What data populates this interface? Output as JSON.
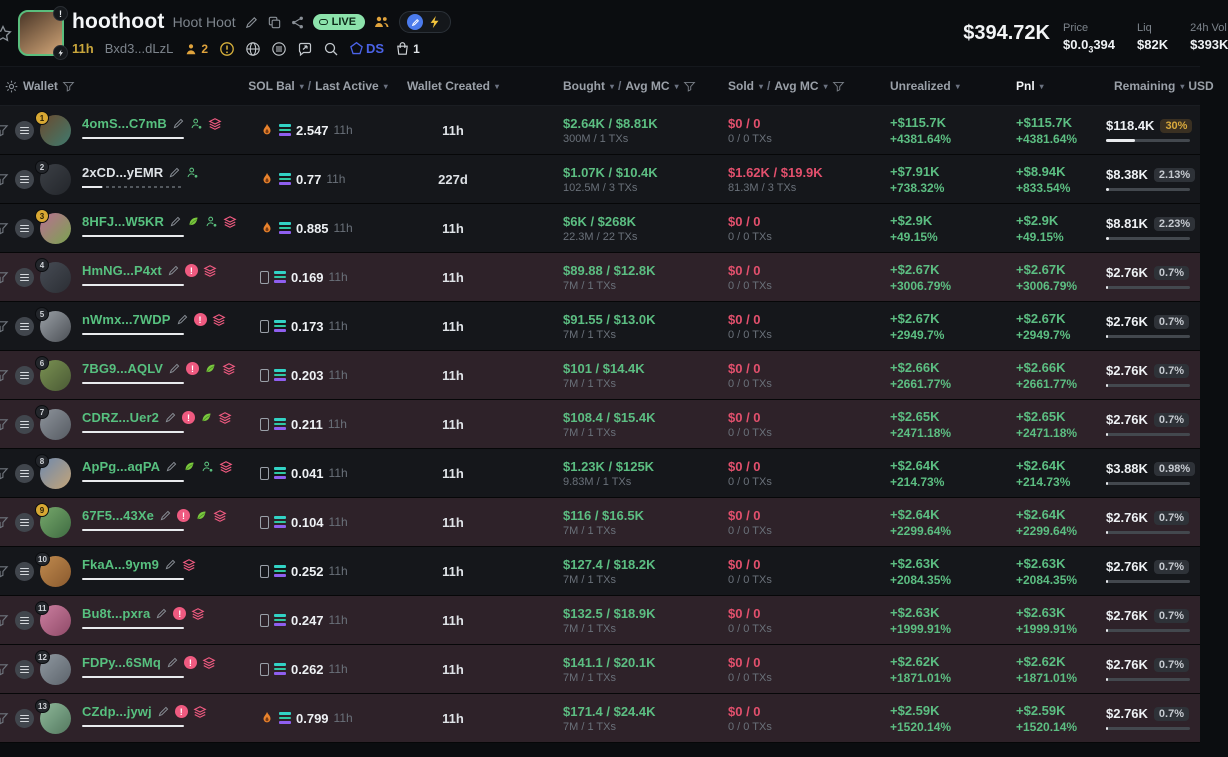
{
  "colors": {
    "green": "#5cbe82",
    "red": "#e3506d",
    "gold": "#d9a93c",
    "ds_blue": "#4b63e8",
    "live_green": "#8ce3ab"
  },
  "header": {
    "token_symbol": "hoothoot",
    "token_name": "Hoot Hoot",
    "live_label": "LIVE",
    "age": "11h",
    "contract": "Bxd3...dLzL",
    "watchers_count": "2",
    "ds_label": "DS",
    "gift_count": "1",
    "market_cap": "$394.72K",
    "price_label": "Price",
    "price_prefix": "$0.0",
    "price_sub": "3",
    "price_suffix": "394",
    "liq_label": "Liq",
    "liq_value": "$82K",
    "vol_label": "24h Vol",
    "vol_value": "$393K"
  },
  "table": {
    "header": {
      "wallet": "Wallet",
      "sol_bal": "SOL Bal",
      "last_active": "Last Active",
      "wallet_created": "Wallet Created",
      "bought": "Bought",
      "avg_mc": "Avg MC",
      "sold": "Sold",
      "avg_mc2": "Avg MC",
      "unrealized": "Unrealized",
      "pnl": "Pnl",
      "remaining": "Remaining",
      "usd": "USD"
    },
    "rows": [
      {
        "rank": "1",
        "rank_gold": true,
        "flagged": false,
        "address": "4omS...C7mB",
        "address_white": false,
        "bar_partial": false,
        "icons": [
          "edit",
          "user",
          "layers"
        ],
        "avatar": [
          "#6b4a2e",
          "#3f7a6e"
        ],
        "sol_icon": "flame",
        "sol_bal": "2.547",
        "last_active": "11h",
        "created": "11h",
        "bought": "$2.64K / $8.81K",
        "bought_sub": "300M / 1 TXs",
        "sold": "$0 / 0",
        "sold_sub": "0 / 0 TXs",
        "unrealized": "+$115.7K",
        "unrealized_pct": "+4381.64%",
        "pnl": "+$115.7K",
        "pnl_pct": "+4381.64%",
        "remaining": "$118.4K",
        "remaining_pct": "30%",
        "pct_yellow": true,
        "bar": 34
      },
      {
        "rank": "2",
        "rank_gold": false,
        "flagged": false,
        "address": "2xCD...yEMR",
        "address_white": true,
        "bar_partial": true,
        "icons": [
          "edit",
          "user"
        ],
        "avatar": [
          "#3c4046",
          "#23262b"
        ],
        "sol_icon": "flame",
        "sol_bal": "0.77",
        "last_active": "11h",
        "created": "227d",
        "bought": "$1.07K / $10.4K",
        "bought_sub": "102.5M / 3 TXs",
        "sold": "$1.62K / $19.9K",
        "sold_sub": "81.3M / 3 TXs",
        "unrealized": "+$7.91K",
        "unrealized_pct": "+738.32%",
        "pnl": "+$8.94K",
        "pnl_pct": "+833.54%",
        "remaining": "$8.38K",
        "remaining_pct": "2.13%",
        "pct_yellow": false,
        "bar": 4
      },
      {
        "rank": "3",
        "rank_gold": true,
        "flagged": false,
        "address": "8HFJ...W5KR",
        "address_white": false,
        "bar_partial": false,
        "icons": [
          "edit",
          "leaf",
          "user",
          "layers"
        ],
        "avatar": [
          "#b96f93",
          "#7aa34f"
        ],
        "sol_icon": "flame",
        "sol_bal": "0.885",
        "last_active": "11h",
        "created": "11h",
        "bought": "$6K / $268K",
        "bought_sub": "22.3M / 22 TXs",
        "sold": "$0 / 0",
        "sold_sub": "0 / 0 TXs",
        "unrealized": "+$2.9K",
        "unrealized_pct": "+49.15%",
        "pnl": "+$2.9K",
        "pnl_pct": "+49.15%",
        "remaining": "$8.81K",
        "remaining_pct": "2.23%",
        "pct_yellow": false,
        "bar": 4
      },
      {
        "rank": "4",
        "rank_gold": false,
        "flagged": true,
        "address": "HmNG...P4xt",
        "address_white": false,
        "bar_partial": false,
        "icons": [
          "edit",
          "alert",
          "layers"
        ],
        "avatar": [
          "#474c55",
          "#2b2e34"
        ],
        "sol_icon": "card",
        "sol_bal": "0.169",
        "last_active": "11h",
        "created": "11h",
        "bought": "$89.88 / $12.8K",
        "bought_sub": "7M / 1 TXs",
        "sold": "$0 / 0",
        "sold_sub": "0 / 0 TXs",
        "unrealized": "+$2.67K",
        "unrealized_pct": "+3006.79%",
        "pnl": "+$2.67K",
        "pnl_pct": "+3006.79%",
        "remaining": "$2.76K",
        "remaining_pct": "0.7%",
        "pct_yellow": false,
        "bar": 2
      },
      {
        "rank": "5",
        "rank_gold": false,
        "flagged": false,
        "address": "nWmx...7WDP",
        "address_white": false,
        "bar_partial": false,
        "icons": [
          "edit",
          "alert",
          "layers"
        ],
        "avatar": [
          "#9aa0a6",
          "#4b4f55"
        ],
        "sol_icon": "card",
        "sol_bal": "0.173",
        "last_active": "11h",
        "created": "11h",
        "bought": "$91.55 / $13.0K",
        "bought_sub": "7M / 1 TXs",
        "sold": "$0 / 0",
        "sold_sub": "0 / 0 TXs",
        "unrealized": "+$2.67K",
        "unrealized_pct": "+2949.7%",
        "pnl": "+$2.67K",
        "pnl_pct": "+2949.7%",
        "remaining": "$2.76K",
        "remaining_pct": "0.7%",
        "pct_yellow": false,
        "bar": 2
      },
      {
        "rank": "6",
        "rank_gold": false,
        "flagged": true,
        "address": "7BG9...AQLV",
        "address_white": false,
        "bar_partial": false,
        "icons": [
          "edit",
          "alert",
          "leaf",
          "layers"
        ],
        "avatar": [
          "#7a9152",
          "#4a5a35"
        ],
        "sol_icon": "card",
        "sol_bal": "0.203",
        "last_active": "11h",
        "created": "11h",
        "bought": "$101 / $14.4K",
        "bought_sub": "7M / 1 TXs",
        "sold": "$0 / 0",
        "sold_sub": "0 / 0 TXs",
        "unrealized": "+$2.66K",
        "unrealized_pct": "+2661.77%",
        "pnl": "+$2.66K",
        "pnl_pct": "+2661.77%",
        "remaining": "$2.76K",
        "remaining_pct": "0.7%",
        "pct_yellow": false,
        "bar": 2
      },
      {
        "rank": "7",
        "rank_gold": false,
        "flagged": true,
        "address": "CDRZ...Uer2",
        "address_white": false,
        "bar_partial": false,
        "icons": [
          "edit",
          "alert",
          "leaf",
          "layers"
        ],
        "avatar": [
          "#8d939b",
          "#565b62"
        ],
        "sol_icon": "card",
        "sol_bal": "0.211",
        "last_active": "11h",
        "created": "11h",
        "bought": "$108.4 / $15.4K",
        "bought_sub": "7M / 1 TXs",
        "sold": "$0 / 0",
        "sold_sub": "0 / 0 TXs",
        "unrealized": "+$2.65K",
        "unrealized_pct": "+2471.18%",
        "pnl": "+$2.65K",
        "pnl_pct": "+2471.18%",
        "remaining": "$2.76K",
        "remaining_pct": "0.7%",
        "pct_yellow": false,
        "bar": 2
      },
      {
        "rank": "8",
        "rank_gold": false,
        "flagged": false,
        "address": "ApPg...aqPA",
        "address_white": false,
        "bar_partial": false,
        "icons": [
          "edit",
          "leaf",
          "user",
          "layers"
        ],
        "avatar": [
          "#6f89ad",
          "#c3a478"
        ],
        "sol_icon": "card",
        "sol_bal": "0.041",
        "last_active": "11h",
        "created": "11h",
        "bought": "$1.23K / $125K",
        "bought_sub": "9.83M / 1 TXs",
        "sold": "$0 / 0",
        "sold_sub": "0 / 0 TXs",
        "unrealized": "+$2.64K",
        "unrealized_pct": "+214.73%",
        "pnl": "+$2.64K",
        "pnl_pct": "+214.73%",
        "remaining": "$3.88K",
        "remaining_pct": "0.98%",
        "pct_yellow": false,
        "bar": 2
      },
      {
        "rank": "9",
        "rank_gold": true,
        "flagged": true,
        "address": "67F5...43Xe",
        "address_white": false,
        "bar_partial": false,
        "icons": [
          "edit",
          "alert",
          "leaf",
          "layers"
        ],
        "avatar": [
          "#76a86b",
          "#3f6b42"
        ],
        "sol_icon": "card",
        "sol_bal": "0.104",
        "last_active": "11h",
        "created": "11h",
        "bought": "$116 / $16.5K",
        "bought_sub": "7M / 1 TXs",
        "sold": "$0 / 0",
        "sold_sub": "0 / 0 TXs",
        "unrealized": "+$2.64K",
        "unrealized_pct": "+2299.64%",
        "pnl": "+$2.64K",
        "pnl_pct": "+2299.64%",
        "remaining": "$2.76K",
        "remaining_pct": "0.7%",
        "pct_yellow": false,
        "bar": 2
      },
      {
        "rank": "10",
        "rank_gold": false,
        "flagged": false,
        "address": "FkaA...9ym9",
        "address_white": false,
        "bar_partial": false,
        "icons": [
          "edit",
          "layers"
        ],
        "avatar": [
          "#c08a4e",
          "#8a5a2e"
        ],
        "sol_icon": "card",
        "sol_bal": "0.252",
        "last_active": "11h",
        "created": "11h",
        "bought": "$127.4 / $18.2K",
        "bought_sub": "7M / 1 TXs",
        "sold": "$0 / 0",
        "sold_sub": "0 / 0 TXs",
        "unrealized": "+$2.63K",
        "unrealized_pct": "+2084.35%",
        "pnl": "+$2.63K",
        "pnl_pct": "+2084.35%",
        "remaining": "$2.76K",
        "remaining_pct": "0.7%",
        "pct_yellow": false,
        "bar": 2
      },
      {
        "rank": "11",
        "rank_gold": false,
        "flagged": true,
        "address": "Bu8t...pxra",
        "address_white": false,
        "bar_partial": false,
        "icons": [
          "edit",
          "alert",
          "layers"
        ],
        "avatar": [
          "#cc7fa0",
          "#8f4a68"
        ],
        "sol_icon": "card",
        "sol_bal": "0.247",
        "last_active": "11h",
        "created": "11h",
        "bought": "$132.5 / $18.9K",
        "bought_sub": "7M / 1 TXs",
        "sold": "$0 / 0",
        "sold_sub": "0 / 0 TXs",
        "unrealized": "+$2.63K",
        "unrealized_pct": "+1999.91%",
        "pnl": "+$2.63K",
        "pnl_pct": "+1999.91%",
        "remaining": "$2.76K",
        "remaining_pct": "0.7%",
        "pct_yellow": false,
        "bar": 2
      },
      {
        "rank": "12",
        "rank_gold": false,
        "flagged": true,
        "address": "FDPy...6SMq",
        "address_white": false,
        "bar_partial": false,
        "icons": [
          "edit",
          "alert",
          "layers"
        ],
        "avatar": [
          "#9099a1",
          "#5c636b"
        ],
        "sol_icon": "card",
        "sol_bal": "0.262",
        "last_active": "11h",
        "created": "11h",
        "bought": "$141.1 / $20.1K",
        "bought_sub": "7M / 1 TXs",
        "sold": "$0 / 0",
        "sold_sub": "0 / 0 TXs",
        "unrealized": "+$2.62K",
        "unrealized_pct": "+1871.01%",
        "pnl": "+$2.62K",
        "pnl_pct": "+1871.01%",
        "remaining": "$2.76K",
        "remaining_pct": "0.7%",
        "pct_yellow": false,
        "bar": 2
      },
      {
        "rank": "13",
        "rank_gold": false,
        "flagged": true,
        "address": "CZdp...jywj",
        "address_white": false,
        "bar_partial": false,
        "icons": [
          "edit",
          "alert",
          "layers"
        ],
        "avatar": [
          "#8fb99a",
          "#53785f"
        ],
        "sol_icon": "flame",
        "sol_bal": "0.799",
        "last_active": "11h",
        "created": "11h",
        "bought": "$171.4 / $24.4K",
        "bought_sub": "7M / 1 TXs",
        "sold": "$0 / 0",
        "sold_sub": "0 / 0 TXs",
        "unrealized": "+$2.59K",
        "unrealized_pct": "+1520.14%",
        "pnl": "+$2.59K",
        "pnl_pct": "+1520.14%",
        "remaining": "$2.76K",
        "remaining_pct": "0.7%",
        "pct_yellow": false,
        "bar": 2
      }
    ]
  }
}
